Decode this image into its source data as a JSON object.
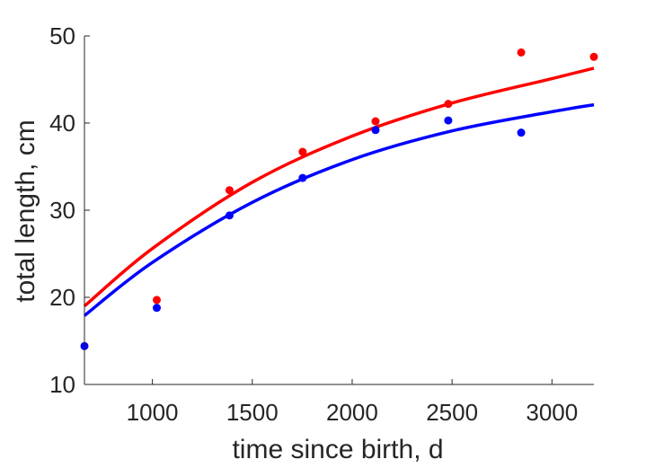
{
  "chart_data": {
    "type": "scatter",
    "title": "",
    "xlabel": "time since birth, d",
    "ylabel": "total length, cm",
    "xlim": [
      660,
      3210
    ],
    "ylim": [
      10,
      50
    ],
    "xticks": [
      1000,
      1500,
      2000,
      2500,
      3000
    ],
    "yticks": [
      10,
      20,
      30,
      40,
      50
    ],
    "grid": false,
    "legend": "none",
    "series": [
      {
        "color": "#ff0000",
        "x": [
          1022,
          1386,
          1752,
          2117,
          2481,
          2846,
          3210
        ],
        "y": [
          19.7,
          32.3,
          36.7,
          40.2,
          42.2,
          48.1,
          47.6
        ]
      },
      {
        "color": "#0000ff",
        "x": [
          660,
          1022,
          1386,
          1752,
          2117,
          2481,
          2846
        ],
        "y": [
          14.4,
          18.8,
          29.4,
          33.7,
          39.2,
          40.3,
          38.9
        ]
      }
    ],
    "fits": [
      {
        "color": "#ff0000",
        "x": [
          660,
          1000,
          1500,
          2000,
          2500,
          3000,
          3210
        ],
        "y": [
          19.0,
          25.6,
          33.2,
          38.5,
          42.3,
          45.1,
          46.3
        ]
      },
      {
        "color": "#0000ff",
        "x": [
          660,
          1000,
          1500,
          2000,
          2500,
          3000,
          3210
        ],
        "y": [
          17.9,
          24.0,
          30.9,
          35.8,
          39.1,
          41.3,
          42.1
        ]
      }
    ]
  }
}
